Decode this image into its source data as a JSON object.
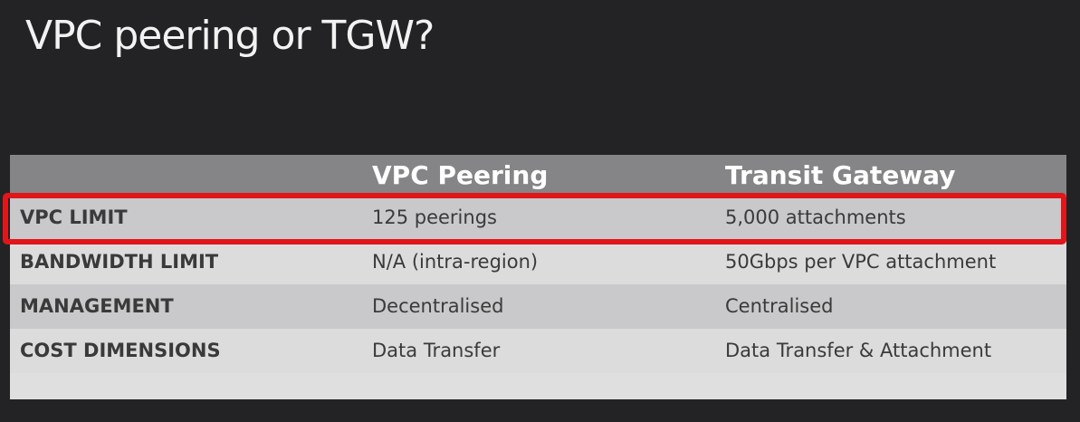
{
  "slide": {
    "title": "VPC peering or TGW?"
  },
  "table": {
    "headers": [
      "",
      "VPC Peering",
      "Transit Gateway"
    ],
    "rows": [
      {
        "label": "VPC LIMIT",
        "peering": "125 peerings",
        "tgw": "5,000 attachments"
      },
      {
        "label": "BANDWIDTH LIMIT",
        "peering": "N/A (intra-region)",
        "tgw": "50Gbps per VPC attachment"
      },
      {
        "label": "MANAGEMENT",
        "peering": "Decentralised",
        "tgw": "Centralised"
      },
      {
        "label": "COST DIMENSIONS",
        "peering": "Data Transfer",
        "tgw": "Data Transfer & Attachment"
      }
    ],
    "highlighted_row": "VPC LIMIT"
  },
  "colors": {
    "background": "#232224",
    "header_fill": "#858486",
    "highlight": "#e0161a"
  }
}
